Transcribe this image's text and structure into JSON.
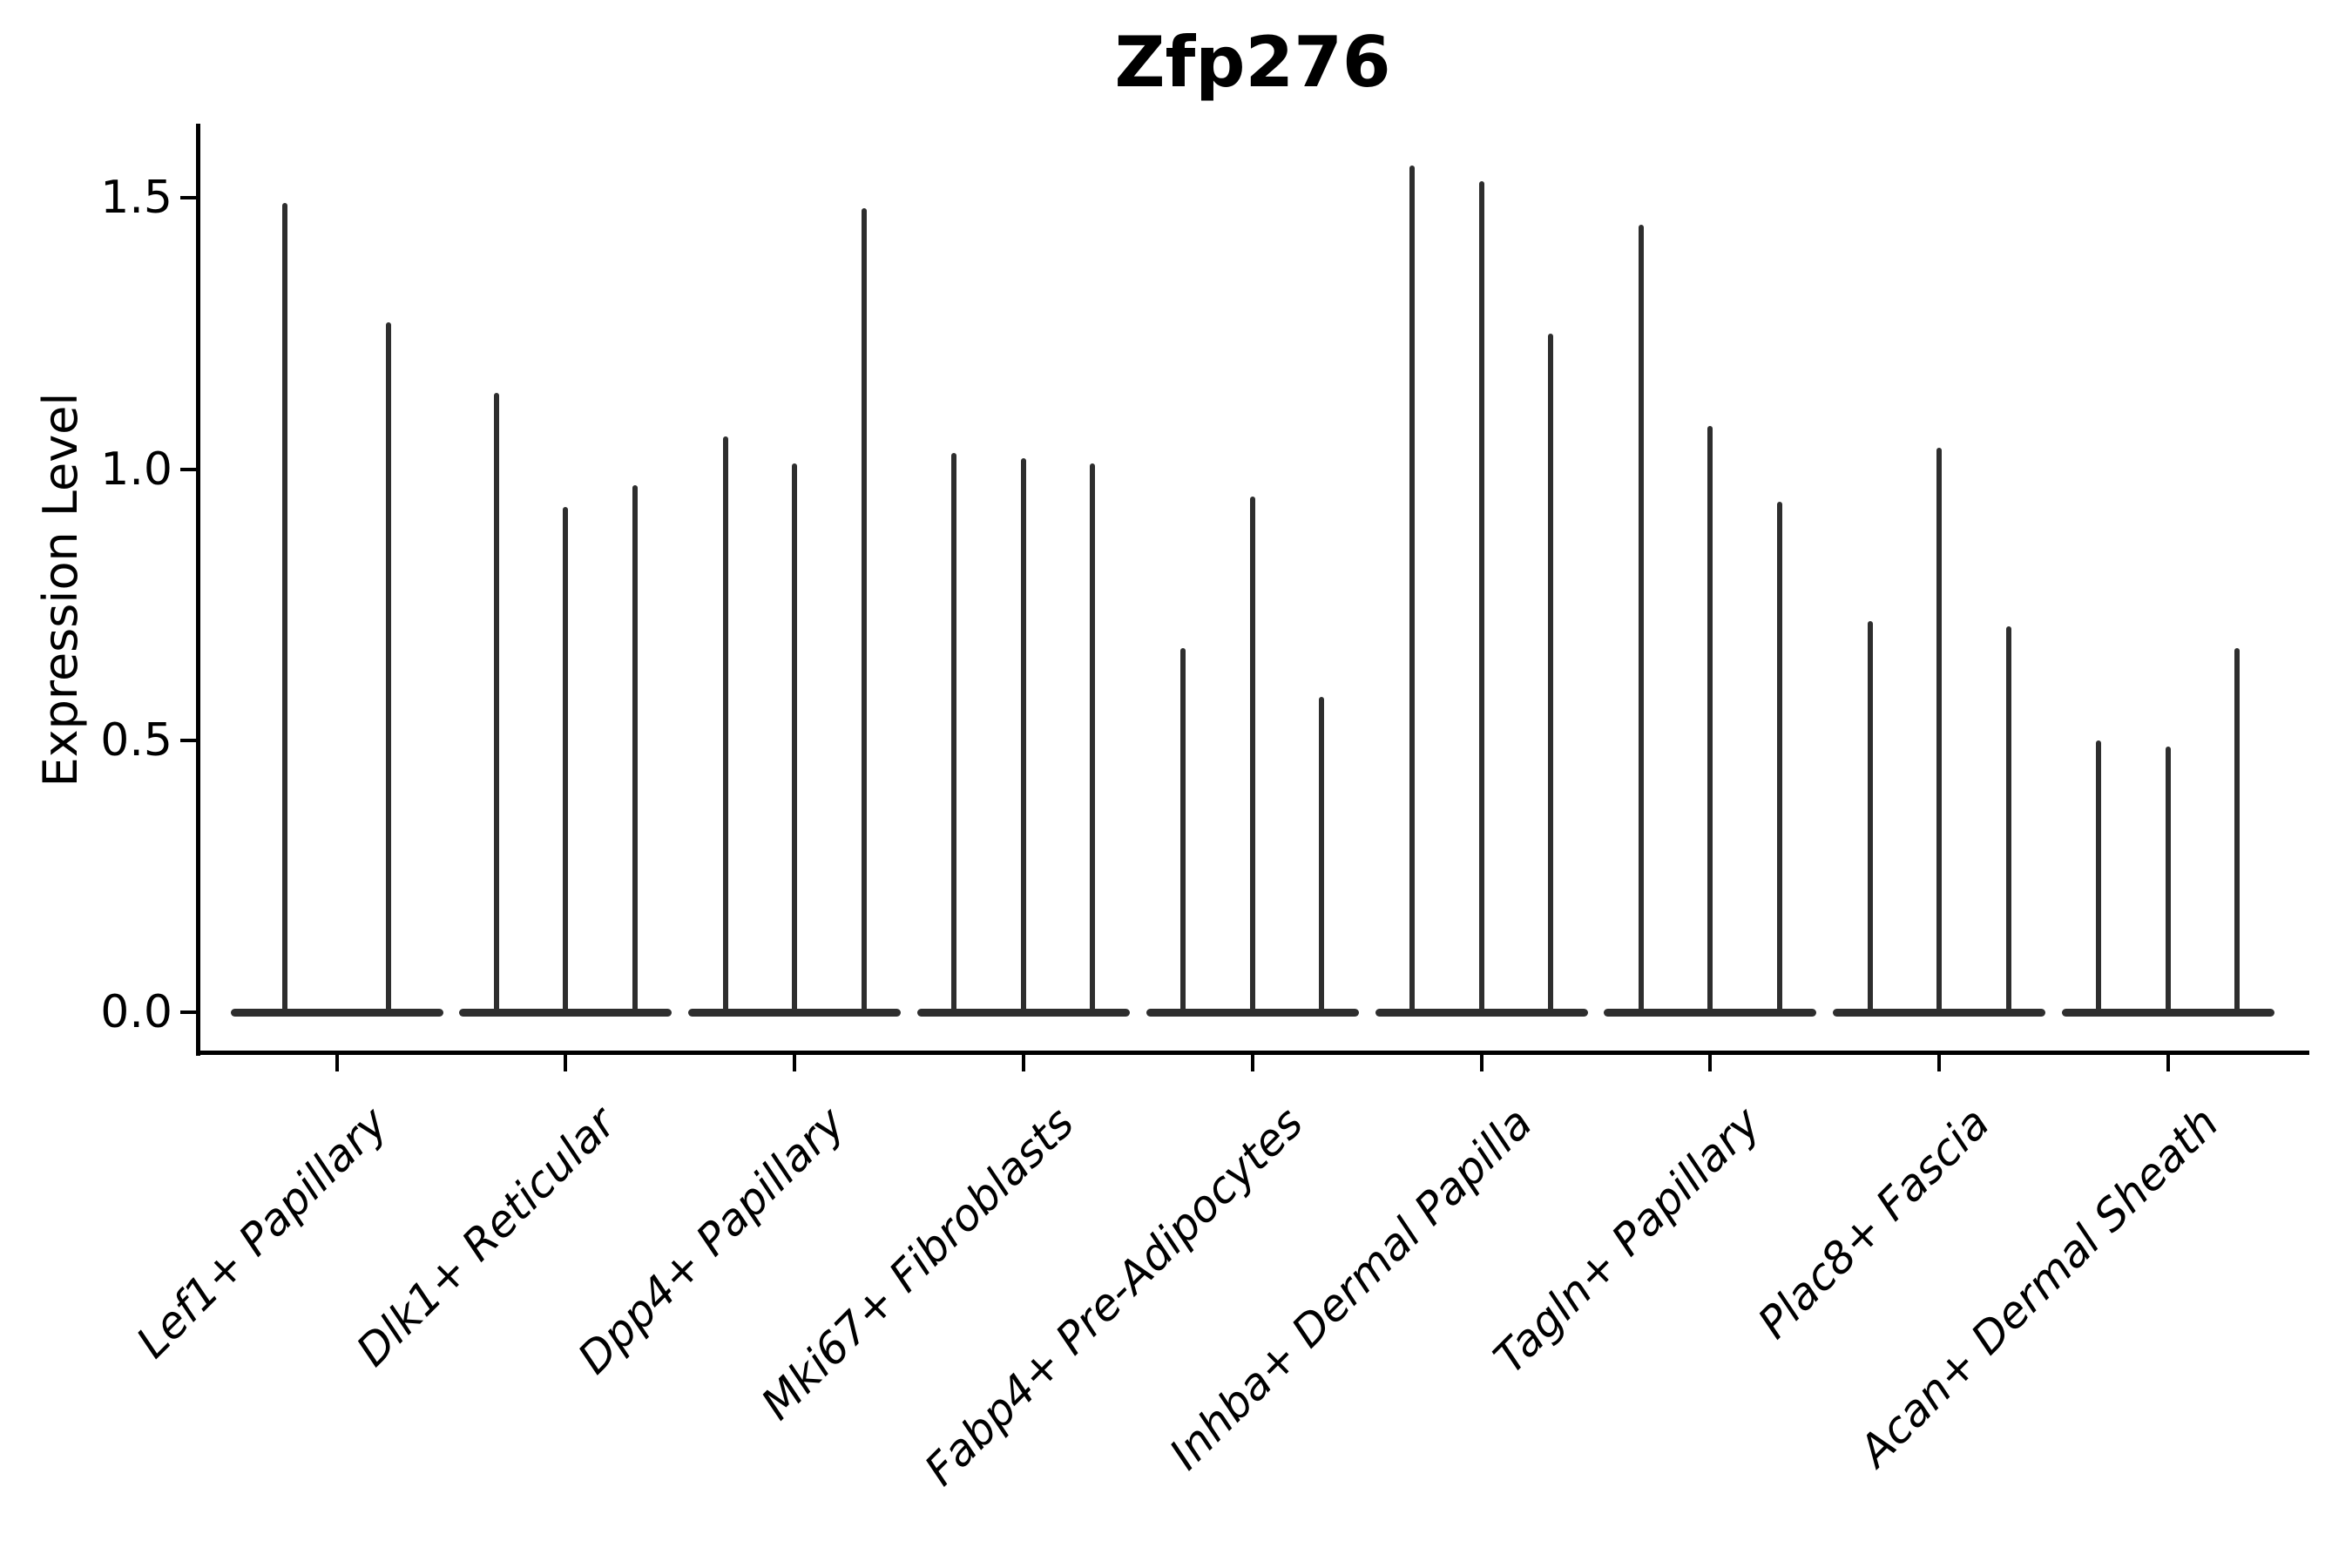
{
  "chart": {
    "title": "Zfp276",
    "ylabel": "Expression Level"
  },
  "colors": {
    "violin": "#2e2e2e",
    "axis": "#000000",
    "text": "#000000",
    "background": "#ffffff"
  },
  "chart_data": {
    "type": "violin",
    "title": "Zfp276",
    "xlabel": "",
    "ylabel": "Expression Level",
    "ylim": [
      -0.08,
      1.63
    ],
    "yticks": [
      0.0,
      0.5,
      1.0,
      1.5
    ],
    "ytick_labels": [
      "0.0",
      "0.5",
      "1.0",
      "1.5"
    ],
    "grid": false,
    "legend": "none",
    "description": "Violin plot of Zfp276 expression per fibroblast cluster; each cluster shows 2-3 narrow violins whose mass is concentrated at 0 with a thin spike up to the maximum expression value.",
    "categories": [
      "Lef1+ Papillary",
      "Dlk1+ Reticular",
      "Dpp4+ Papillary",
      "Mki67+ Fibroblasts",
      "Fabp4+ Pre-Adipocytes",
      "Inhba+ Dermal Papilla",
      "Tagln+ Papillary",
      "Plac8+ Fascia",
      "Acan+ Dermal Sheath"
    ],
    "groups": [
      {
        "label": "Lef1+ Papillary",
        "violin_peaks": [
          1.49,
          1.27
        ]
      },
      {
        "label": "Dlk1+ Reticular",
        "violin_peaks": [
          1.14,
          0.93,
          0.97
        ]
      },
      {
        "label": "Dpp4+ Papillary",
        "violin_peaks": [
          1.06,
          1.01,
          1.48
        ]
      },
      {
        "label": "Mki67+ Fibroblasts",
        "violin_peaks": [
          1.03,
          1.02,
          1.01
        ]
      },
      {
        "label": "Fabp4+ Pre-Adipocytes",
        "violin_peaks": [
          0.67,
          0.95,
          0.58
        ]
      },
      {
        "label": "Inhba+ Dermal Papilla",
        "violin_peaks": [
          1.56,
          1.53,
          1.25
        ]
      },
      {
        "label": "Tagln+ Papillary",
        "violin_peaks": [
          1.45,
          1.08,
          0.94
        ]
      },
      {
        "label": "Plac8+ Fascia",
        "violin_peaks": [
          0.72,
          1.04,
          0.71
        ]
      },
      {
        "label": "Acan+ Dermal Sheath",
        "violin_peaks": [
          0.5,
          0.49,
          0.67
        ]
      }
    ],
    "baseline_value": 0.0
  }
}
